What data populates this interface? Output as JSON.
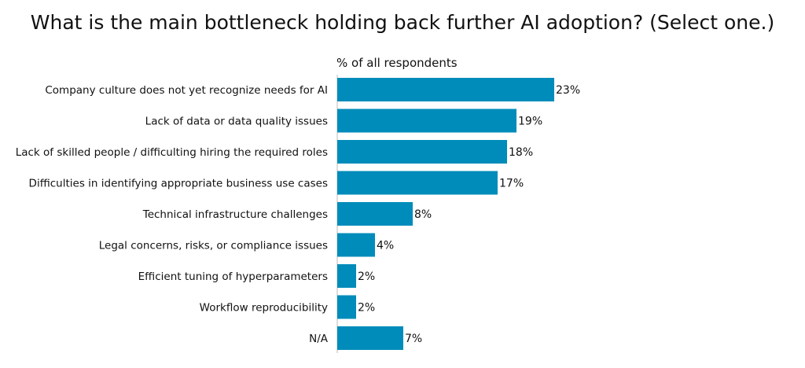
{
  "chart_data": {
    "type": "bar",
    "orientation": "horizontal",
    "title": "What is the main bottleneck holding back further AI adoption?  (Select one.)",
    "subtitle": "% of all respondents",
    "categories": [
      "Company culture does not yet recognize needs for AI",
      "Lack of data or data quality issues",
      "Lack of skilled people / difficulting hiring the required roles",
      "Difficulties in identifying appropriate business use cases",
      "Technical infrastructure challenges",
      "Legal concerns, risks, or compliance issues",
      "Efficient tuning of hyperparameters",
      "Workflow reproducibility",
      "N/A"
    ],
    "values": [
      23,
      19,
      18,
      17,
      8,
      4,
      2,
      2,
      7
    ],
    "value_labels": [
      "23%",
      "19%",
      "18%",
      "17%",
      "8%",
      "4%",
      "2%",
      "2%",
      "7%"
    ],
    "bar_color": "#008cba",
    "xlim": [
      0,
      23
    ],
    "grid": false,
    "legend": "none"
  }
}
